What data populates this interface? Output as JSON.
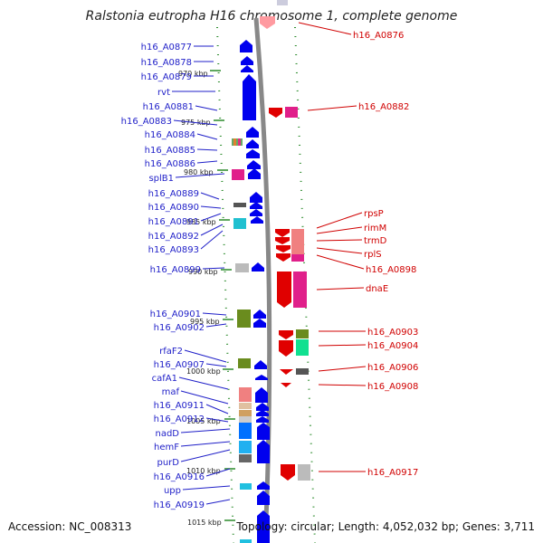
{
  "title": "Ralstonia eutropha H16 chromosome 1, complete genome",
  "accession": "Accession: NC_008313",
  "topology": "Topology: circular; Length: 4,052,032 bp; Genes: 3,711",
  "colors": {
    "left_label": "#1f1fc8",
    "right_label": "#d00000",
    "backbone": "#888888",
    "tick": "#2a8a2a"
  },
  "kbp_marks": [
    "970 kbp",
    "975 kbp",
    "980 kbp",
    "985 kbp",
    "990 kbp",
    "995 kbp",
    "1000 kbp",
    "1005 kbp",
    "1010 kbp",
    "1015 kbp"
  ],
  "left_genes": [
    "h16_A0877",
    "h16_A0878",
    "h16_A0879",
    "rvt",
    "h16_A0881",
    "h16_A0883",
    "h16_A0884",
    "h16_A0885",
    "h16_A0886",
    "splB1",
    "h16_A0889",
    "h16_A0890",
    "h16_A0891",
    "h16_A0892",
    "h16_A0893",
    "h16_A0899",
    "h16_A0901",
    "h16_A0902",
    "rfaF2",
    "h16_A0907",
    "cafA1",
    "maf",
    "h16_A0911",
    "h16_A0912",
    "nadD",
    "hemF",
    "purD",
    "h16_A0916",
    "upp",
    "h16_A0919"
  ],
  "right_genes": [
    "h16_A0876",
    "h16_A0882",
    "rpsP",
    "rimM",
    "trmD",
    "rplS",
    "h16_A0898",
    "dnaE",
    "h16_A0903",
    "h16_A0904",
    "h16_A0906",
    "h16_A0908",
    "h16_A0917"
  ]
}
